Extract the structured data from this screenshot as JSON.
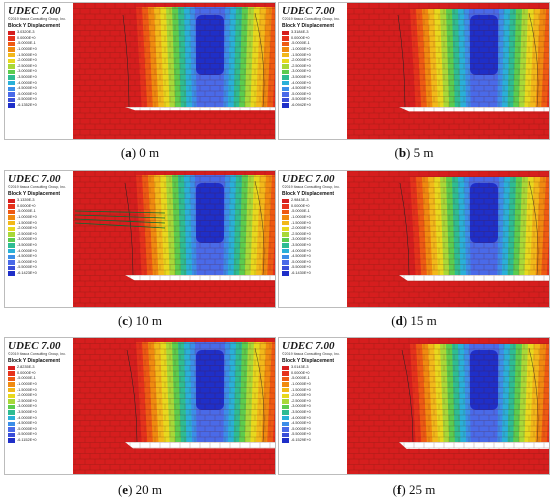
{
  "app_title": "UDEC 7.00",
  "copyright": "©2019 Itasca Consulting Group, Inc.",
  "legend_title": "Block Y Displacement",
  "colors": [
    "#d61e1e",
    "#e6321c",
    "#ee5a14",
    "#f08a10",
    "#f2b81a",
    "#e8d81e",
    "#a8d838",
    "#5ccc4e",
    "#2ebc92",
    "#2ab0d8",
    "#3c8ee8",
    "#4a6ae8",
    "#3a4ed8",
    "#1f2fc8"
  ],
  "panels": [
    {
      "letter": "a",
      "distance": "0 m",
      "legend": [
        "3.0320E-3",
        "0.0000E+0",
        "-5.0000E-1",
        "-1.0000E+0",
        "-1.5000E+0",
        "-2.0000E+0",
        "-2.5000E+0",
        "-3.0000E+0",
        "-3.5000E+0",
        "-4.0000E+0",
        "-4.5000E+0",
        "-5.0000E+0",
        "-5.5000E+0",
        "-6.1352E+0"
      ]
    },
    {
      "letter": "b",
      "distance": "5 m",
      "legend": [
        "3.3184E-3",
        "0.0000E+0",
        "-5.0000E-1",
        "-1.0000E+0",
        "-1.5000E+0",
        "-2.0000E+0",
        "-2.5000E+0",
        "-3.0000E+0",
        "-3.5000E+0",
        "-4.0000E+0",
        "-4.5000E+0",
        "-5.0000E+0",
        "-5.5000E+0",
        "-6.0942E+0"
      ]
    },
    {
      "letter": "c",
      "distance": "10 m",
      "legend": [
        "3.1339E-3",
        "0.0000E+0",
        "-5.0000E-1",
        "-1.0000E+0",
        "-1.5000E+0",
        "-2.0000E+0",
        "-2.5000E+0",
        "-3.0000E+0",
        "-3.5000E+0",
        "-4.0000E+0",
        "-4.5000E+0",
        "-5.0000E+0",
        "-5.5000E+0",
        "-6.1423E+0"
      ]
    },
    {
      "letter": "d",
      "distance": "15 m",
      "legend": [
        "2.9843E-3",
        "0.0000E+0",
        "-5.0000E-1",
        "-1.0000E+0",
        "-1.5000E+0",
        "-2.0000E+0",
        "-2.5000E+0",
        "-3.0000E+0",
        "-3.5000E+0",
        "-4.0000E+0",
        "-4.5000E+0",
        "-5.0000E+0",
        "-5.5000E+0",
        "-6.1430E+0"
      ]
    },
    {
      "letter": "e",
      "distance": "20 m",
      "legend": [
        "2.8235E-3",
        "0.0000E+0",
        "-5.0000E-1",
        "-1.0000E+0",
        "-1.5000E+0",
        "-2.0000E+0",
        "-2.5000E+0",
        "-3.0000E+0",
        "-3.5000E+0",
        "-4.0000E+0",
        "-4.5000E+0",
        "-5.0000E+0",
        "-5.5000E+0",
        "-6.1152E+0"
      ]
    },
    {
      "letter": "f",
      "distance": "25 m",
      "legend": [
        "3.0143E-3",
        "0.0000E+0",
        "-5.0000E-1",
        "-1.0000E+0",
        "-1.5000E+0",
        "-2.0000E+0",
        "-2.5000E+0",
        "-3.0000E+0",
        "-3.5000E+0",
        "-4.0000E+0",
        "-4.5000E+0",
        "-5.0000E+0",
        "-5.5000E+0",
        "-6.1529E+0"
      ]
    }
  ]
}
